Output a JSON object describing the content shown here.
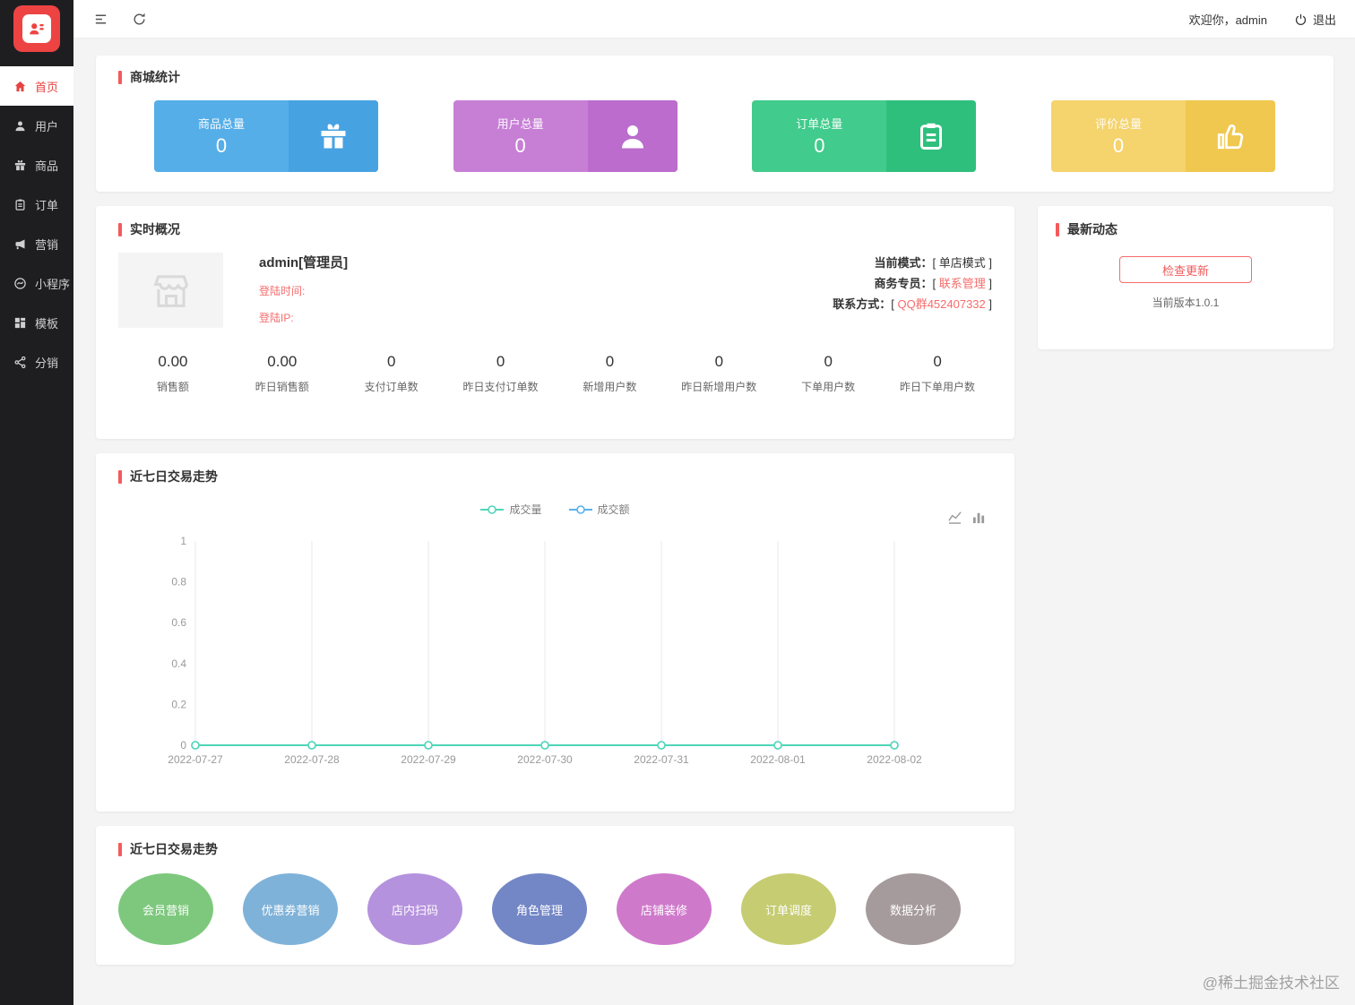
{
  "topbar": {
    "welcome": "欢迎你，admin",
    "logout": "退出"
  },
  "sidebar": {
    "items": [
      {
        "label": "首页",
        "active": true
      },
      {
        "label": "用户",
        "active": false
      },
      {
        "label": "商品",
        "active": false
      },
      {
        "label": "订单",
        "active": false
      },
      {
        "label": "营销",
        "active": false
      },
      {
        "label": "小程序",
        "active": false
      },
      {
        "label": "模板",
        "active": false
      },
      {
        "label": "分销",
        "active": false
      }
    ]
  },
  "stats_section": {
    "title": "商城统计",
    "cards": [
      {
        "label": "商品总量",
        "value": "0",
        "icon": "gift-icon",
        "color": "#55aee8",
        "icon_color": "#47a2e2"
      },
      {
        "label": "用户总量",
        "value": "0",
        "icon": "user-icon",
        "color": "#c77fd6",
        "icon_color": "#bb6ccd"
      },
      {
        "label": "订单总量",
        "value": "0",
        "icon": "order-icon",
        "color": "#41cb8c",
        "icon_color": "#2ebf7d"
      },
      {
        "label": "评价总量",
        "value": "0",
        "icon": "like-icon",
        "color": "#f5d36d",
        "icon_color": "#f0c84f"
      }
    ]
  },
  "overview": {
    "title": "实时概况",
    "admin_name": "admin[管理员]",
    "login_time_label": "登陆时间:",
    "login_ip_label": "登陆IP:",
    "mode_line": {
      "label": "当前模式：",
      "value": "[ 单店模式 ]"
    },
    "specialist_line": {
      "label": "商务专员：",
      "open": "[ ",
      "link": "联系管理",
      "close": " ]"
    },
    "contact_line": {
      "label": "联系方式：",
      "open": "[ ",
      "link": "QQ群452407332",
      "close": " ]"
    },
    "metrics": [
      {
        "value": "0.00",
        "label": "销售额"
      },
      {
        "value": "0.00",
        "label": "昨日销售额"
      },
      {
        "value": "0",
        "label": "支付订单数"
      },
      {
        "value": "0",
        "label": "昨日支付订单数"
      },
      {
        "value": "0",
        "label": "新增用户数"
      },
      {
        "value": "0",
        "label": "昨日新增用户数"
      },
      {
        "value": "0",
        "label": "下单用户数"
      },
      {
        "value": "0",
        "label": "昨日下单用户数"
      }
    ]
  },
  "news": {
    "title": "最新动态",
    "check_update": "检查更新",
    "version": "当前版本1.0.1"
  },
  "chart_section": {
    "title": "近七日交易走势"
  },
  "chart_data": {
    "type": "line",
    "x": [
      "2022-07-27",
      "2022-07-28",
      "2022-07-29",
      "2022-07-30",
      "2022-07-31",
      "2022-08-01",
      "2022-08-02"
    ],
    "series": [
      {
        "name": "成交量",
        "values": [
          0,
          0,
          0,
          0,
          0,
          0,
          0
        ],
        "color": "#4fd6b8"
      },
      {
        "name": "成交额",
        "values": [
          0,
          0,
          0,
          0,
          0,
          0,
          0
        ],
        "color": "#5ab1ef"
      }
    ],
    "ylim": [
      0,
      1
    ],
    "yticks": [
      0,
      0.2,
      0.4,
      0.6,
      0.8,
      1
    ],
    "legend_position": "top-center",
    "grid": "vertical-splitlines"
  },
  "quick_section": {
    "title": "近七日交易走势",
    "items": [
      {
        "label": "会员营销",
        "color": "#7dc87d"
      },
      {
        "label": "优惠券营销",
        "color": "#7fb2d9"
      },
      {
        "label": "店内扫码",
        "color": "#b592dd"
      },
      {
        "label": "角色管理",
        "color": "#7387c6"
      },
      {
        "label": "店铺装修",
        "color": "#cf79cb"
      },
      {
        "label": "订单调度",
        "color": "#c6cc72"
      },
      {
        "label": "数据分析",
        "color": "#a59a9c"
      }
    ]
  },
  "watermark": "@稀土掘金技术社区"
}
